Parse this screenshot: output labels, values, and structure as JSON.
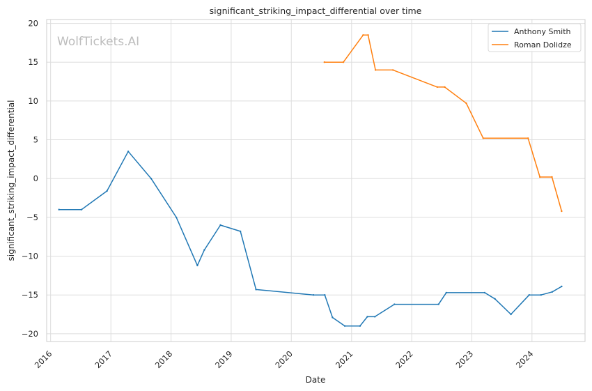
{
  "chart_data": {
    "type": "line",
    "title": "significant_striking_impact_differential over time",
    "xlabel": "Date",
    "ylabel": "significant_striking_impact_differential",
    "watermark": "WolfTickets.AI",
    "x_ticks": [
      "2016",
      "2017",
      "2018",
      "2019",
      "2020",
      "2021",
      "2022",
      "2023",
      "2024"
    ],
    "y_ticks": [
      "−20",
      "−15",
      "−10",
      "−5",
      "0",
      "5",
      "10",
      "15",
      "20"
    ],
    "ylim": [
      -21,
      20.5
    ],
    "xlim": [
      "2015-12-08",
      "2024-11-18"
    ],
    "grid": true,
    "legend_position": "top-right",
    "series": [
      {
        "name": "Anthony Smith",
        "color": "#1f77b4",
        "points": [
          [
            "2016-02-21",
            -4.0
          ],
          [
            "2016-07-07",
            -4.0
          ],
          [
            "2016-12-08",
            -1.6
          ],
          [
            "2017-04-16",
            3.5
          ],
          [
            "2017-09-02",
            0.0
          ],
          [
            "2018-02-02",
            -5.0
          ],
          [
            "2018-06-10",
            -11.2
          ],
          [
            "2018-07-22",
            -9.2
          ],
          [
            "2018-10-28",
            -6.0
          ],
          [
            "2019-02-26",
            -6.8
          ],
          [
            "2019-06-01",
            -14.3
          ],
          [
            "2020-05-14",
            -15.0
          ],
          [
            "2020-07-22",
            -15.0
          ],
          [
            "2020-09-07",
            -17.9
          ],
          [
            "2020-11-21",
            -19.0
          ],
          [
            "2021-02-21",
            -19.0
          ],
          [
            "2021-04-07",
            -17.8
          ],
          [
            "2021-05-22",
            -17.8
          ],
          [
            "2021-09-18",
            -16.2
          ],
          [
            "2022-06-13",
            -16.2
          ],
          [
            "2022-07-30",
            -14.7
          ],
          [
            "2023-03-20",
            -14.7
          ],
          [
            "2023-05-21",
            -15.5
          ],
          [
            "2023-08-26",
            -17.5
          ],
          [
            "2023-12-15",
            -15.0
          ],
          [
            "2024-02-25",
            -15.0
          ],
          [
            "2024-05-03",
            -14.6
          ],
          [
            "2024-06-29",
            -13.9
          ]
        ]
      },
      {
        "name": "Roman Dolidze",
        "color": "#ff7f0e",
        "points": [
          [
            "2020-07-20",
            15.0
          ],
          [
            "2020-11-12",
            15.0
          ],
          [
            "2021-03-12",
            18.5
          ],
          [
            "2021-04-11",
            18.5
          ],
          [
            "2021-05-26",
            14.0
          ],
          [
            "2021-09-09",
            14.0
          ],
          [
            "2022-06-05",
            11.8
          ],
          [
            "2022-07-20",
            11.8
          ],
          [
            "2022-11-28",
            9.7
          ],
          [
            "2023-03-11",
            5.2
          ],
          [
            "2023-12-08",
            5.2
          ],
          [
            "2024-02-18",
            0.2
          ],
          [
            "2024-05-01",
            0.2
          ],
          [
            "2024-06-29",
            -4.2
          ]
        ]
      }
    ]
  }
}
